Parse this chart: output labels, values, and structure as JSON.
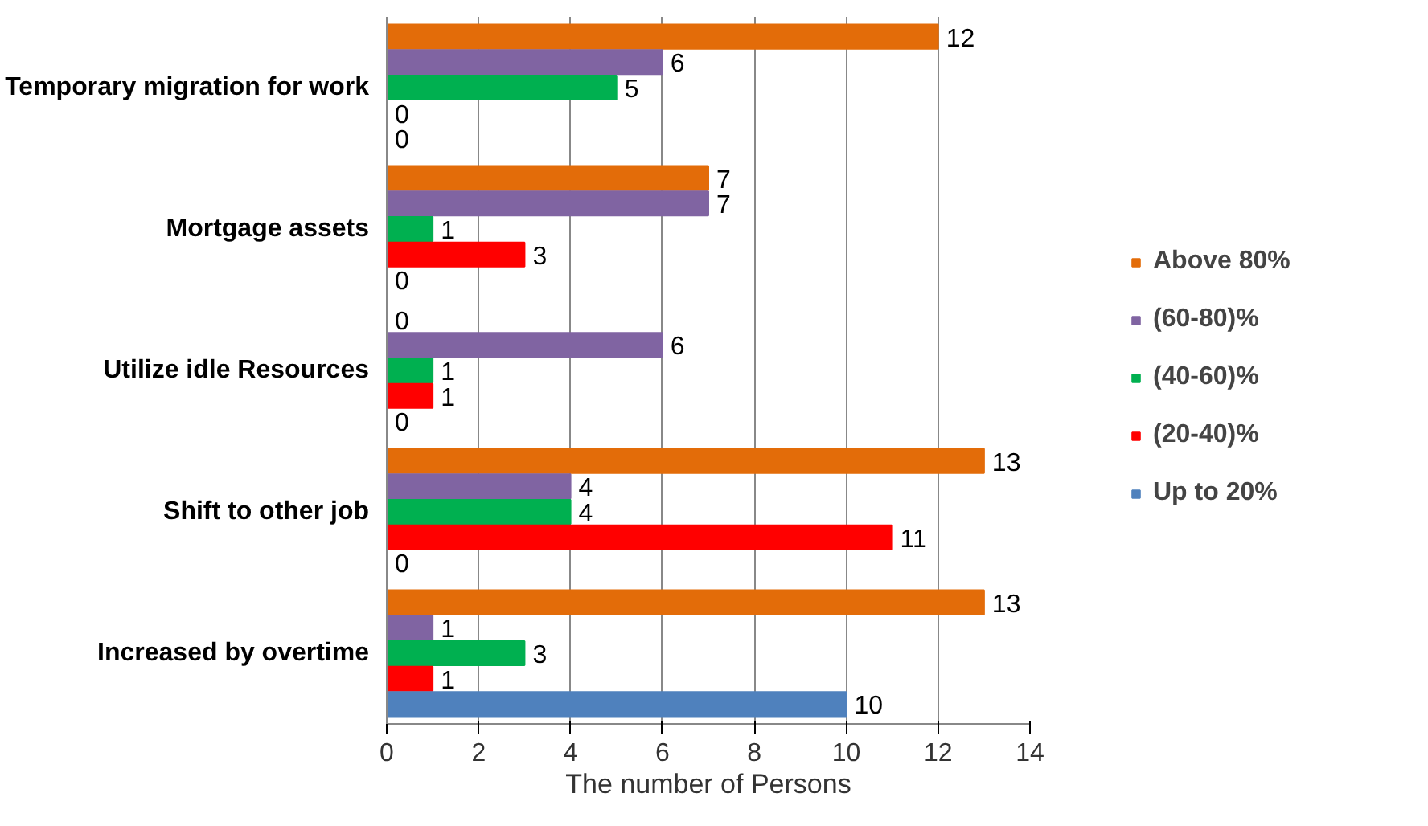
{
  "chart_data": {
    "type": "bar",
    "orientation": "horizontal",
    "xlabel": "The number of Persons",
    "categories": [
      "Temporary migration for work",
      "Mortgage assets",
      "Utilize idle Resources",
      "Shift to other job",
      "Increased by overtime"
    ],
    "series": [
      {
        "name": "Above 80%",
        "color": "#e36c09",
        "values": [
          12,
          7,
          0,
          13,
          13
        ]
      },
      {
        "name": "(60-80)%",
        "color": "#8064a2",
        "values": [
          6,
          7,
          6,
          4,
          1
        ]
      },
      {
        "name": "(40-60)%",
        "color": "#00b050",
        "values": [
          5,
          1,
          1,
          4,
          3
        ]
      },
      {
        "name": "(20-40)%",
        "color": "#ff0000",
        "values": [
          0,
          3,
          1,
          11,
          1
        ]
      },
      {
        "name": "Up to 20%",
        "color": "#4f81bd",
        "values": [
          0,
          0,
          0,
          0,
          10
        ]
      }
    ],
    "xlim": [
      0,
      14
    ],
    "xticks": [
      0,
      2,
      4,
      6,
      8,
      10,
      12,
      14
    ],
    "grid": "x",
    "legend": "right",
    "data_labels": true
  }
}
